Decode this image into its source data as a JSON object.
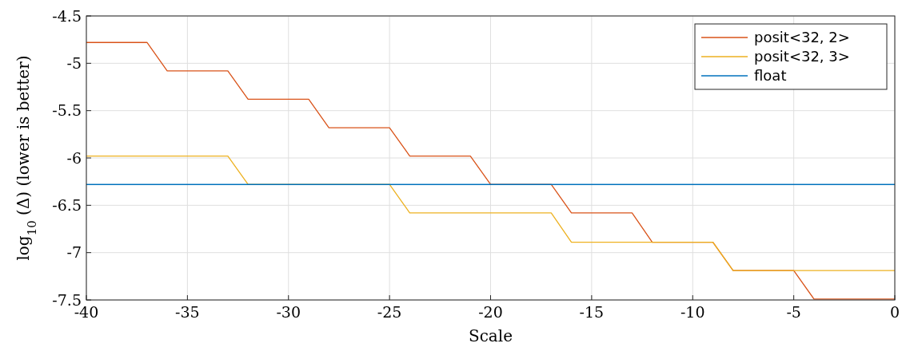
{
  "chart_data": {
    "type": "line",
    "xlabel": "Scale",
    "ylabel": "log$_{10}$ (Δ) (lower is better)",
    "xlim": [
      -40,
      0
    ],
    "xticks": [
      -40,
      -35,
      -30,
      -25,
      -20,
      -15,
      -10,
      -5,
      0
    ],
    "ylim": [
      -7.5,
      -4.5
    ],
    "yticks": [
      -7.5,
      -7,
      -6.5,
      -6,
      -5.5,
      -5,
      -4.5
    ],
    "grid": true,
    "legend": "top right",
    "line_style": "solid",
    "series": [
      {
        "name": "posit<32, 2>",
        "color": "#d95319",
        "x": [
          -40,
          -37,
          -36,
          -33,
          -32,
          -29,
          -28,
          -25,
          -24,
          -21,
          -20,
          -17,
          -16,
          -13,
          -12,
          -9,
          -8,
          -5,
          -4,
          0
        ],
        "values": [
          -4.78,
          -4.78,
          -5.08,
          -5.08,
          -5.38,
          -5.38,
          -5.68,
          -5.68,
          -5.98,
          -5.98,
          -6.28,
          -6.28,
          -6.58,
          -6.58,
          -6.89,
          -6.89,
          -7.19,
          -7.19,
          -7.49,
          -7.49
        ]
      },
      {
        "name": "posit<32, 3>",
        "color": "#edb120",
        "x": [
          -40,
          -33,
          -32,
          -25,
          -24,
          -17,
          -16,
          -9,
          -8,
          0
        ],
        "values": [
          -5.98,
          -5.98,
          -6.28,
          -6.28,
          -6.58,
          -6.58,
          -6.89,
          -6.89,
          -7.19,
          -7.19
        ]
      },
      {
        "name": "float",
        "color": "#0072bd",
        "x": [
          -40,
          0
        ],
        "values": [
          -6.28,
          -6.28
        ]
      }
    ]
  }
}
